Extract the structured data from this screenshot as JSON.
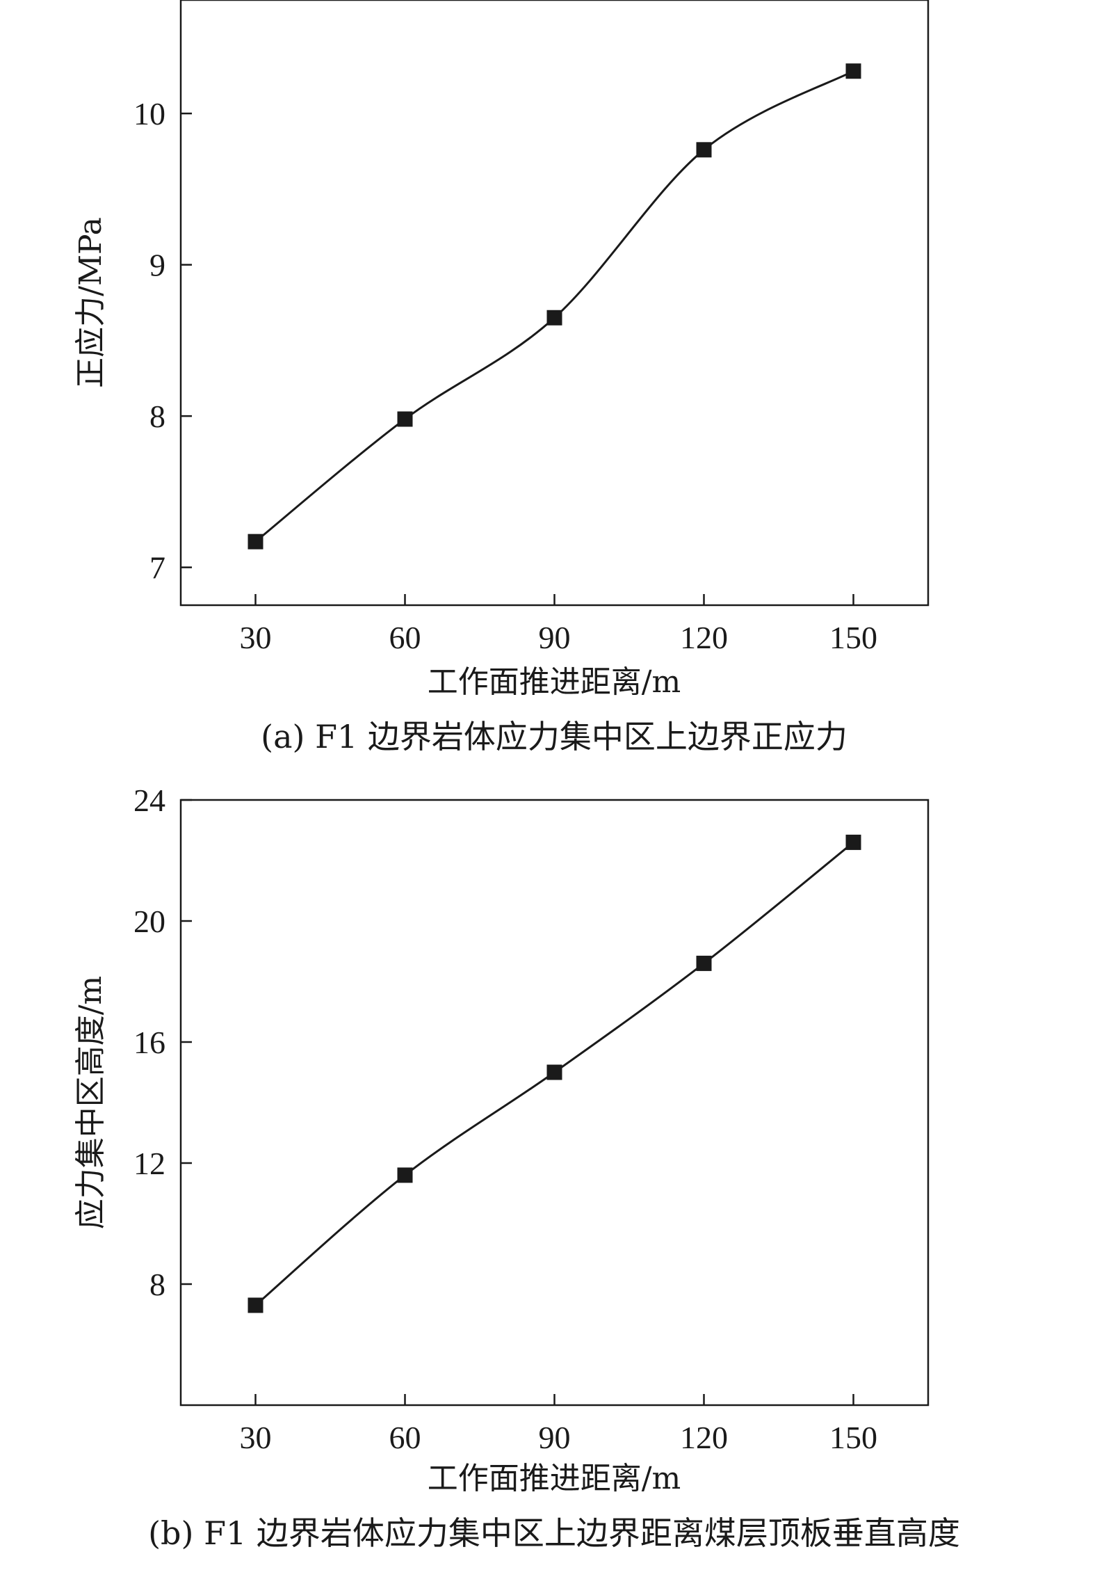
{
  "chart_data": [
    {
      "type": "line",
      "caption": "(a) F1 边界岩体应力集中区上边界正应力",
      "xlabel": "工作面推进距离/m",
      "ylabel": "正应力/MPa",
      "x": [
        30,
        60,
        90,
        120,
        150
      ],
      "y": [
        7.17,
        7.98,
        8.65,
        9.76,
        10.28
      ],
      "xlim": [
        15,
        165
      ],
      "ylim": [
        6.75,
        10.75
      ],
      "xticks": [
        30,
        60,
        90,
        120,
        150
      ],
      "yticks": [
        7,
        8,
        9,
        10
      ],
      "marker": "square",
      "smooth": true,
      "color": "#1a1a1a",
      "grid": false
    },
    {
      "type": "line",
      "caption": "(b) F1 边界岩体应力集中区上边界距离煤层顶板垂直高度",
      "xlabel": "工作面推进距离/m",
      "ylabel": "应力集中区高度/m",
      "x": [
        30,
        60,
        90,
        120,
        150
      ],
      "y": [
        7.3,
        11.6,
        15.0,
        18.6,
        22.6
      ],
      "xlim": [
        15,
        165
      ],
      "ylim": [
        4,
        24
      ],
      "xticks": [
        30,
        60,
        90,
        120,
        150
      ],
      "yticks": [
        8,
        12,
        16,
        20,
        24
      ],
      "marker": "square",
      "smooth": true,
      "color": "#1a1a1a",
      "grid": false
    }
  ]
}
